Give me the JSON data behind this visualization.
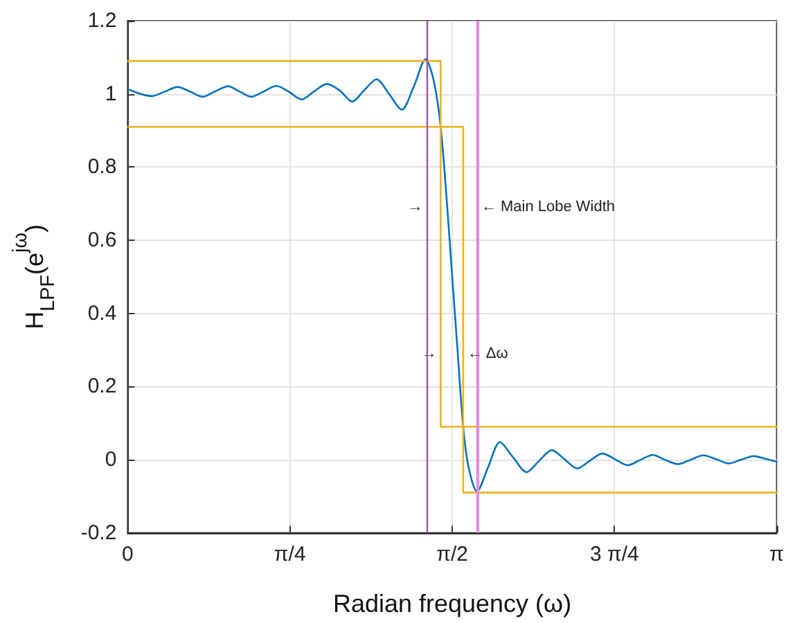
{
  "chart_data": {
    "type": "line",
    "xlabel": "Radian frequency (ω)",
    "ylabel": "H$_{LPF}$(e$^{jω}$)",
    "series": [
      {
        "color": "#0072bd",
        "x": [
          0,
          0.115,
          0.178,
          0.242,
          0.303,
          0.364,
          0.42,
          0.487,
          0.54,
          0.598,
          0.66,
          0.72,
          0.78,
          0.842,
          0.9,
          0.964,
          1.025,
          1.087,
          1.145,
          1.205,
          1.265,
          1.327,
          1.385,
          1.442,
          1.48,
          1.515,
          1.547,
          1.571,
          1.598,
          1.624,
          1.65,
          1.691,
          1.745,
          1.802,
          1.865,
          1.931,
          1.99,
          2.053,
          2.115,
          2.176,
          2.237,
          2.298,
          2.36,
          2.42,
          2.48,
          2.542,
          2.6,
          2.664,
          2.725,
          2.787,
          2.85,
          2.909,
          2.97,
          3.031,
          3.09,
          3.1416
        ],
        "values": [
          1.013,
          0.994,
          1.006,
          1.019,
          1.006,
          0.992,
          1.006,
          1.021,
          1.007,
          0.992,
          1.007,
          1.022,
          1.006,
          0.985,
          1.006,
          1.027,
          1.01,
          0.979,
          1.01,
          1.04,
          1.0,
          0.957,
          1.02,
          1.095,
          1.04,
          0.91,
          0.69,
          0.5,
          0.29,
          0.09,
          -0.02,
          -0.087,
          -0.02,
          0.048,
          0.007,
          -0.034,
          -0.004,
          0.026,
          0.001,
          -0.024,
          -0.003,
          0.017,
          0.001,
          -0.015,
          -0.001,
          0.013,
          0.0,
          -0.012,
          0.0,
          0.012,
          0.001,
          -0.01,
          0.0,
          0.01,
          0.002,
          -0.005
        ]
      },
      {
        "color": "#edb120",
        "x": [
          0,
          1.515,
          1.515,
          3.1416
        ],
        "values": [
          1.09,
          1.09,
          0.09,
          0.09
        ]
      },
      {
        "color": "#edb120",
        "x": [
          0,
          1.624,
          1.624,
          3.1416
        ],
        "values": [
          0.91,
          0.91,
          -0.09,
          -0.09
        ]
      }
    ],
    "ref_lines": [
      {
        "axis": "x",
        "value": 1.449,
        "color": "#a04cb4"
      },
      {
        "axis": "x",
        "value": 1.691,
        "color": "#dd8fdd"
      }
    ],
    "annotations": [
      {
        "text": "→",
        "x": 1.449,
        "y": 0.69
      },
      {
        "text": "← Main Lobe Width",
        "x": 1.691,
        "y": 0.69
      },
      {
        "text": "→",
        "x": 1.515,
        "y": 0.289
      },
      {
        "text": "← Δω",
        "x": 1.624,
        "y": 0.289
      }
    ],
    "xlim": [
      0,
      3.1416
    ],
    "xticks": [
      0,
      {
        "value": 0.7854,
        "label": "π/4"
      },
      {
        "value": 1.5708,
        "label": "π/2"
      },
      {
        "value": 2.3562,
        "label": "3 π/4"
      },
      {
        "value": 3.1416,
        "label": "π"
      }
    ],
    "ylim": [
      -0.2,
      1.2
    ],
    "yticks": [
      -0.2,
      0,
      0.2,
      0.4,
      0.6,
      0.8,
      1,
      1.2
    ],
    "grid": true,
    "marker": "none",
    "line_style": "solid"
  }
}
